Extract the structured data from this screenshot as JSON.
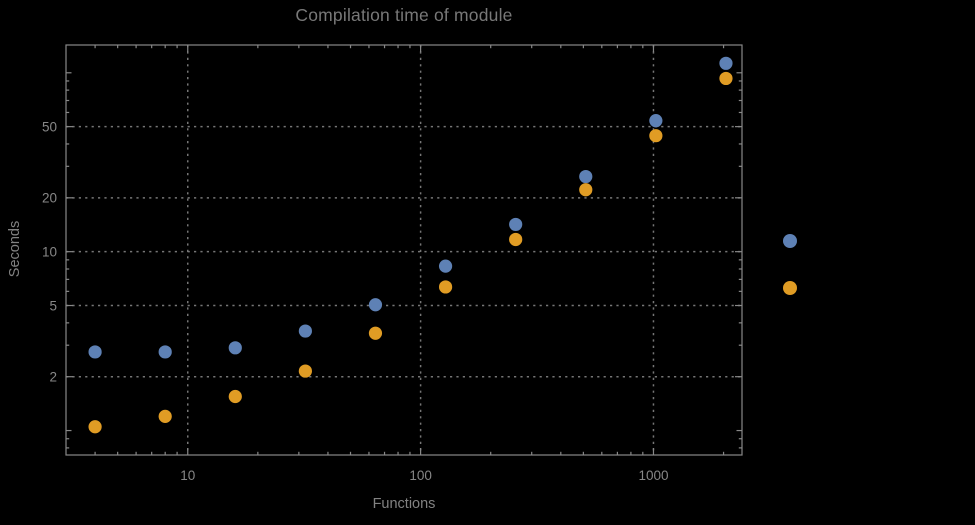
{
  "title": "Compilation time of module",
  "chart_data": {
    "type": "scatter",
    "title": "Compilation time of module",
    "xlabel": "Functions",
    "ylabel": "Seconds",
    "x_scale": "log",
    "y_scale": "log",
    "x": [
      4,
      8,
      16,
      32,
      64,
      128,
      256,
      512,
      1024,
      2048
    ],
    "series": [
      {
        "name": "series-blue",
        "color": "#5E81B5",
        "values": [
          2.75,
          2.75,
          2.9,
          3.6,
          5.05,
          8.3,
          14.2,
          26.3,
          54,
          113
        ]
      },
      {
        "name": "series-orange",
        "color": "#E09C24",
        "values": [
          1.05,
          1.2,
          1.55,
          2.15,
          3.5,
          6.35,
          11.7,
          22.2,
          44.5,
          93
        ]
      }
    ],
    "x_ticks": [
      10,
      100,
      1000
    ],
    "x_tick_labels": [
      "10",
      "100",
      "1000"
    ],
    "y_ticks": [
      2,
      5,
      10,
      20,
      50
    ],
    "y_tick_labels": [
      "2",
      "5",
      "10",
      "20",
      "50"
    ],
    "xlim": [
      3,
      2400
    ],
    "ylim": [
      0.73,
      143
    ],
    "grid": "dotted gridlines at labeled major ticks only",
    "legend_position": "right of frame, color markers only (no visible label text)"
  },
  "legend": {
    "items": [
      {
        "marker": "disk",
        "color": "#5E81B5"
      },
      {
        "marker": "disk",
        "color": "#E09C24"
      }
    ]
  },
  "colors": {
    "background": "#000000",
    "frame": "#888888",
    "gridline": "#767676",
    "tick": "#888888",
    "tick_label_text": "#878787",
    "title_text": "#787878",
    "axis_label_text": "#828282",
    "series_blue": "#5E81B5",
    "series_orange": "#E09C24"
  }
}
